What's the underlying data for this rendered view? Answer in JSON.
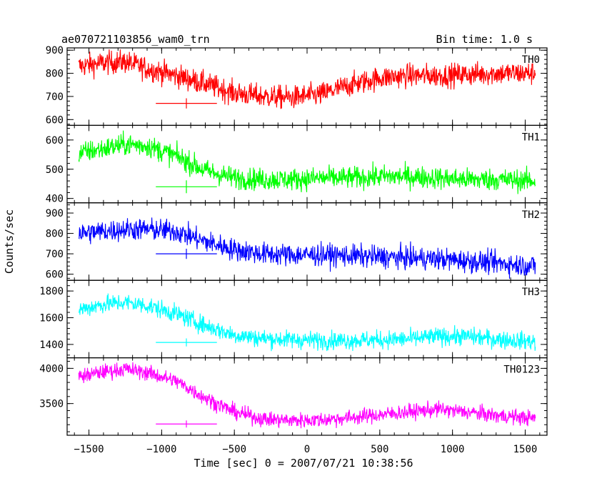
{
  "chart_data": {
    "type": "line",
    "title": "ae070721103856_wam0_trn",
    "bin_time_label": "Bin time: 1.0 s",
    "xlabel": "Time [sec] 0 = 2007/07/21 10:38:56",
    "ylabel": "Counts/sec",
    "xlim": [
      -1650,
      1650
    ],
    "x_ticks": [
      -1500,
      -1000,
      -500,
      0,
      500,
      1000,
      1500
    ],
    "x_tick_labels": [
      "−1500",
      "−1000",
      "−500",
      "0",
      "500",
      "1000",
      "1500"
    ],
    "x_data_range": [
      -1570,
      1570
    ],
    "panels": [
      {
        "name": "TH0",
        "color": "#ff0000",
        "ylim": [
          575,
          910
        ],
        "y_ticks": [
          600,
          700,
          800,
          900
        ],
        "y_tick_labels": [
          "600",
          "700",
          "800",
          "900"
        ],
        "trend": {
          "x": [
            -1570,
            -1400,
            -1250,
            -1100,
            -900,
            -700,
            -500,
            -300,
            -100,
            100,
            300,
            500,
            700,
            900,
            1100,
            1300,
            1570
          ],
          "y": [
            830,
            845,
            850,
            820,
            790,
            755,
            715,
            700,
            695,
            710,
            750,
            780,
            790,
            790,
            795,
            800,
            800
          ]
        },
        "noise_amplitude": 60,
        "error_bar": {
          "x": -830,
          "y": 670,
          "xerr": 210,
          "yerr": 22
        }
      },
      {
        "name": "TH1",
        "color": "#00ff00",
        "ylim": [
          385,
          650
        ],
        "y_ticks": [
          400,
          500,
          600
        ],
        "y_tick_labels": [
          "400",
          "500",
          "600"
        ],
        "trend": {
          "x": [
            -1570,
            -1400,
            -1250,
            -1100,
            -900,
            -700,
            -500,
            -300,
            -100,
            100,
            300,
            500,
            700,
            900,
            1100,
            1300,
            1570
          ],
          "y": [
            555,
            570,
            585,
            580,
            545,
            495,
            470,
            465,
            465,
            470,
            470,
            475,
            475,
            470,
            465,
            465,
            460
          ]
        },
        "noise_amplitude": 45,
        "error_bar": {
          "x": -830,
          "y": 440,
          "xerr": 210,
          "yerr": 22
        }
      },
      {
        "name": "TH2",
        "color": "#0000ff",
        "ylim": [
          570,
          950
        ],
        "y_ticks": [
          600,
          700,
          800,
          900
        ],
        "y_tick_labels": [
          "600",
          "700",
          "800",
          "900"
        ],
        "trend": {
          "x": [
            -1570,
            -1400,
            -1250,
            -1100,
            -900,
            -700,
            -500,
            -300,
            -100,
            100,
            300,
            500,
            700,
            900,
            1100,
            1300,
            1570
          ],
          "y": [
            800,
            810,
            820,
            820,
            810,
            760,
            720,
            700,
            695,
            695,
            690,
            685,
            680,
            675,
            665,
            655,
            640
          ]
        },
        "noise_amplitude": 65,
        "error_bar": {
          "x": -830,
          "y": 700,
          "xerr": 210,
          "yerr": 25
        }
      },
      {
        "name": "TH3",
        "color": "#00ffff",
        "ylim": [
          1300,
          1880
        ],
        "y_ticks": [
          1400,
          1600,
          1800
        ],
        "y_tick_labels": [
          "1400",
          "1600",
          "1800"
        ],
        "trend": {
          "x": [
            -1570,
            -1400,
            -1250,
            -1100,
            -900,
            -700,
            -500,
            -300,
            -100,
            100,
            300,
            500,
            700,
            900,
            1100,
            1300,
            1570
          ],
          "y": [
            1660,
            1700,
            1715,
            1690,
            1630,
            1540,
            1470,
            1445,
            1435,
            1430,
            1430,
            1435,
            1440,
            1460,
            1460,
            1440,
            1420
          ]
        },
        "noise_amplitude": 80,
        "error_bar": {
          "x": -830,
          "y": 1415,
          "xerr": 210,
          "yerr": 30
        }
      },
      {
        "name": "TH0123",
        "color": "#ff00ff",
        "ylim": [
          3050,
          4150
        ],
        "y_ticks": [
          3500,
          4000
        ],
        "y_tick_labels": [
          "3500",
          "4000"
        ],
        "trend": {
          "x": [
            -1570,
            -1400,
            -1250,
            -1100,
            -900,
            -700,
            -500,
            -300,
            -100,
            100,
            300,
            500,
            700,
            900,
            1100,
            1300,
            1570
          ],
          "y": [
            3880,
            3950,
            3990,
            3940,
            3820,
            3580,
            3380,
            3280,
            3260,
            3270,
            3300,
            3340,
            3380,
            3420,
            3380,
            3330,
            3290
          ]
        },
        "noise_amplitude": 130,
        "error_bar": {
          "x": -830,
          "y": 3210,
          "xerr": 210,
          "yerr": 50
        }
      }
    ]
  }
}
